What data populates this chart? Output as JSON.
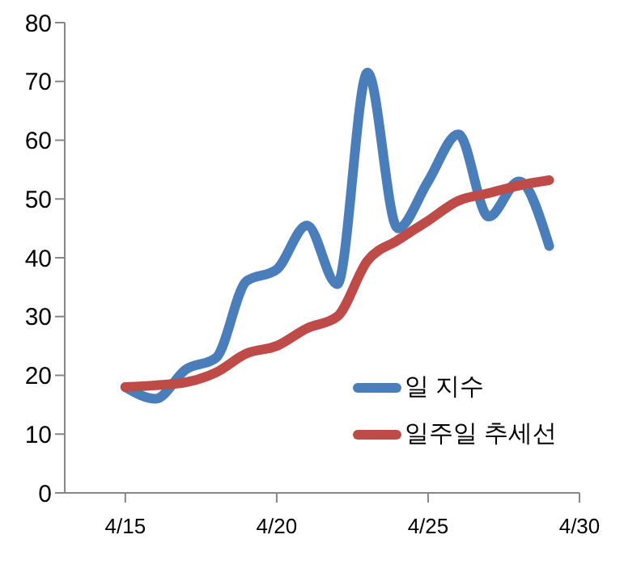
{
  "chart_data": {
    "type": "line",
    "x": [
      "--04-15",
      "--04-16",
      "--04-17",
      "--04-18",
      "--04-19",
      "--04-20",
      "--04-21",
      "--04-22",
      "--04-23",
      "--04-24",
      "--04-25",
      "--04-26",
      "--04-27",
      "--04-28",
      "--04-29"
    ],
    "series": [
      {
        "name": "일 지수",
        "color": "#4a7ebb",
        "values": [
          18,
          16,
          21,
          23,
          36,
          38,
          45.5,
          35.5,
          71.5,
          45,
          53,
          61,
          47,
          53,
          42
        ]
      },
      {
        "name": "일주일 추세선",
        "color": "#be4b48",
        "values": [
          18,
          18.3,
          18.8,
          20.5,
          23.7,
          25,
          28,
          30,
          39.5,
          43,
          46.3,
          49.7,
          51,
          52.3,
          53.2
        ]
      }
    ],
    "xlim": [
      "--04-13",
      "--04-30"
    ],
    "xticks": [
      {
        "value": "--04-15",
        "label": "4/15"
      },
      {
        "value": "--04-20",
        "label": "4/20"
      },
      {
        "value": "--04-25",
        "label": "4/25"
      },
      {
        "value": "--04-30",
        "label": "4/30"
      }
    ],
    "ylim": [
      0,
      80
    ],
    "yticks": [
      0,
      10,
      20,
      30,
      40,
      50,
      60,
      70,
      80
    ],
    "grid": false,
    "legend": "right",
    "marker": "none",
    "line_style": "solid"
  }
}
